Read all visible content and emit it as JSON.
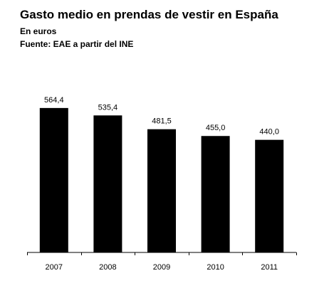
{
  "chart_data": {
    "type": "bar",
    "title": "Gasto medio en prendas de vestir en España",
    "unit_label": "En euros",
    "source": "Fuente: EAE a partir del INE",
    "categories": [
      "2007",
      "2008",
      "2009",
      "2010",
      "2011"
    ],
    "values": [
      564.4,
      535.4,
      481.5,
      455.0,
      440.0
    ],
    "value_labels": [
      "564,4",
      "535,4",
      "481,5",
      "455,0",
      "440,0"
    ],
    "xlabel": "",
    "ylabel": "",
    "ylim": [
      0,
      600
    ],
    "grid": false,
    "legend": "none",
    "bar_color": "#000000"
  }
}
